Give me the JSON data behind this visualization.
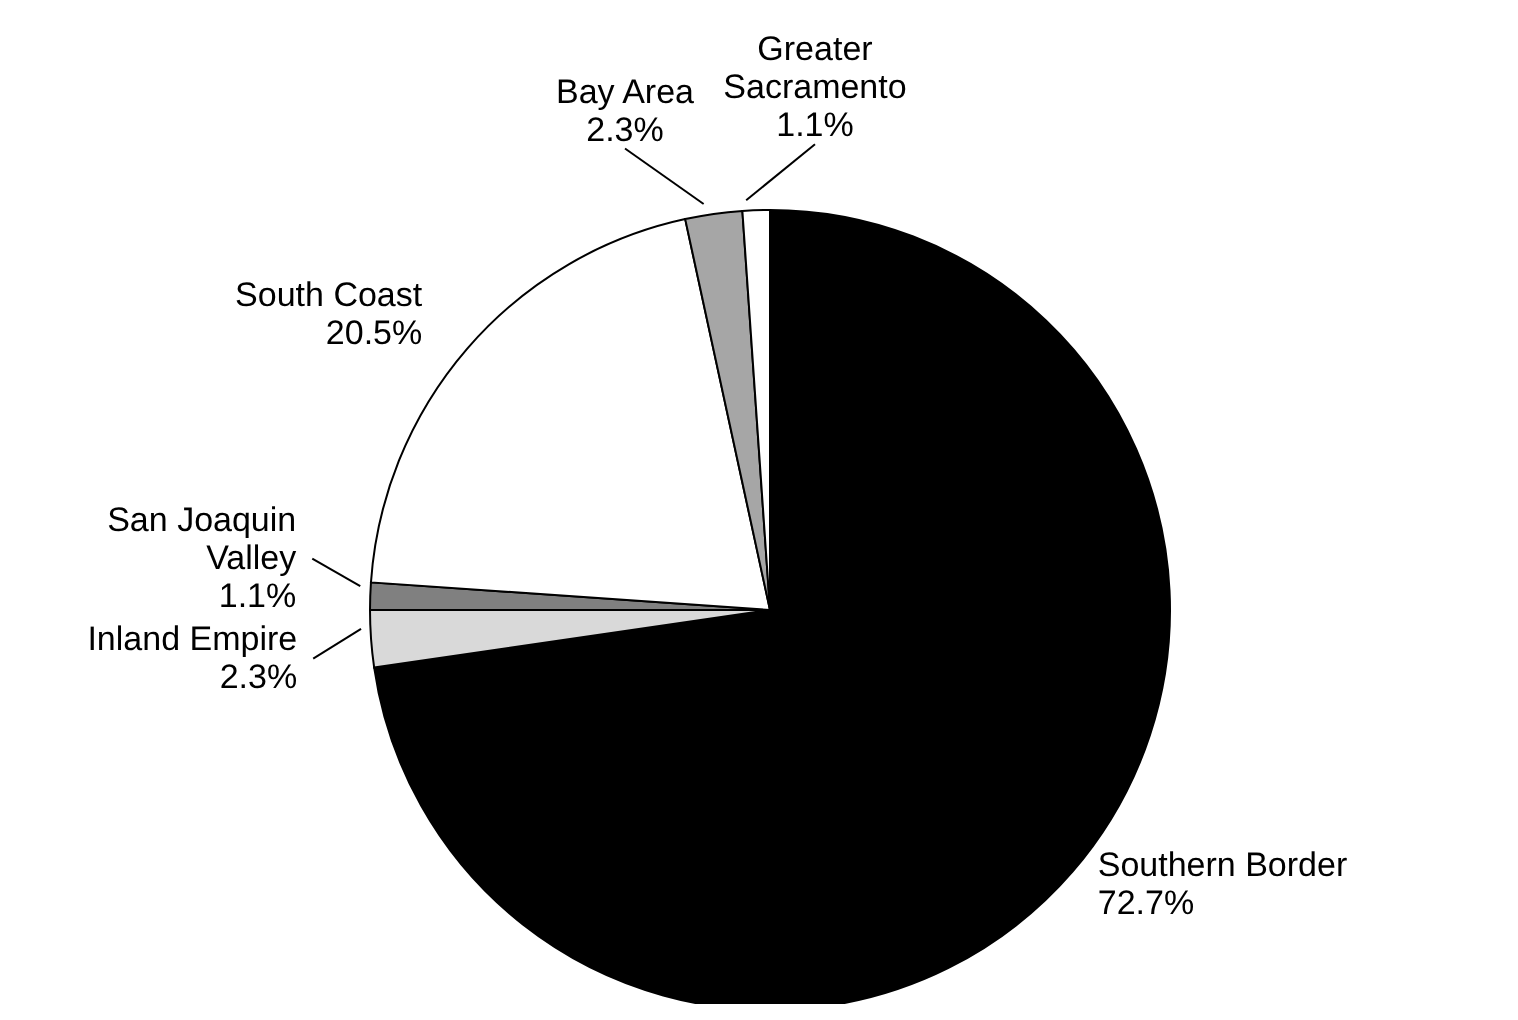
{
  "chart_data": {
    "type": "pie",
    "categories": [
      "Southern Border",
      "Inland Empire",
      "San Joaquin Valley",
      "South Coast",
      "Bay Area",
      "Greater Sacramento"
    ],
    "values": [
      72.7,
      2.3,
      1.1,
      20.5,
      2.3,
      1.1
    ],
    "colors": [
      "#000000",
      "#d9d9d9",
      "#808080",
      "#ffffff",
      "#a6a6a6",
      "#ffffff"
    ],
    "value_labels": [
      "72.7%",
      "2.3%",
      "1.1%",
      "20.5%",
      "2.3%",
      "1.1%"
    ],
    "legend": false
  }
}
